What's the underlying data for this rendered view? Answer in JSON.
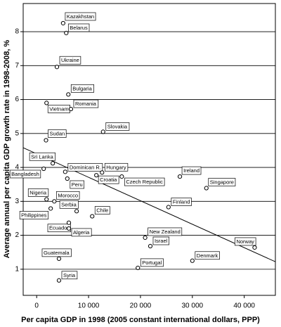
{
  "chart_data": {
    "type": "scatter",
    "x_label": "Per capita GDP in 1998 (2005 constant international dollars, PPP)",
    "y_label": "Average annual per capita GDP growth rate in 1998-2008, %",
    "labels": [
      "Kazakhstan",
      "Belarus",
      "Ukraine",
      "Bulgaria",
      "Vietnam",
      "Romania",
      "Slovakia",
      "Sudan",
      "Sri Lanka",
      "Bangladesh",
      "Dominican R.",
      "Hungary",
      "Croatia",
      "Czech Republic",
      "Peru",
      "Ireland",
      "Singapore",
      "Nigeria",
      "Morocco",
      "Philippines",
      "Serbia",
      "Chile",
      "Finland",
      "Ecuador",
      "Algeria",
      "New Zealand",
      "Israel",
      "Norway",
      "Denmark",
      "Guatemala",
      "Portugal",
      "Syria"
    ],
    "x": [
      5100,
      5700,
      3900,
      6100,
      1900,
      6600,
      12800,
      1800,
      3100,
      1350,
      5500,
      12600,
      11500,
      16400,
      5900,
      27600,
      32700,
      1900,
      3400,
      2700,
      7700,
      10700,
      25400,
      6200,
      6200,
      20900,
      21900,
      42000,
      30000,
      4300,
      19500,
      4300
    ],
    "y": [
      8.25,
      7.96,
      6.96,
      6.15,
      5.9,
      5.72,
      5.05,
      4.8,
      4.12,
      3.96,
      3.87,
      3.85,
      3.77,
      3.73,
      3.67,
      3.73,
      3.39,
      3.06,
      3.0,
      2.79,
      2.71,
      2.56,
      2.83,
      2.37,
      2.2,
      1.93,
      1.68,
      1.64,
      1.25,
      1.31,
      1.04,
      0.67
    ],
    "fit_line": {
      "x": [
        -2600,
        46000
      ],
      "y": [
        4.58,
        1.22
      ]
    },
    "xlim": [
      -2600,
      46000
    ],
    "ylim": [
      0.23,
      8.83
    ],
    "xticks": [
      0,
      {
        "value": 10000,
        "label": "10 000"
      },
      {
        "value": 20000,
        "label": "20 000"
      },
      {
        "value": 30000,
        "label": "30 000"
      },
      {
        "value": 40000,
        "label": "40 000"
      }
    ],
    "yticks": [
      1,
      2,
      3,
      4,
      5,
      6,
      7,
      8
    ],
    "grid": true,
    "color": "#000000"
  }
}
